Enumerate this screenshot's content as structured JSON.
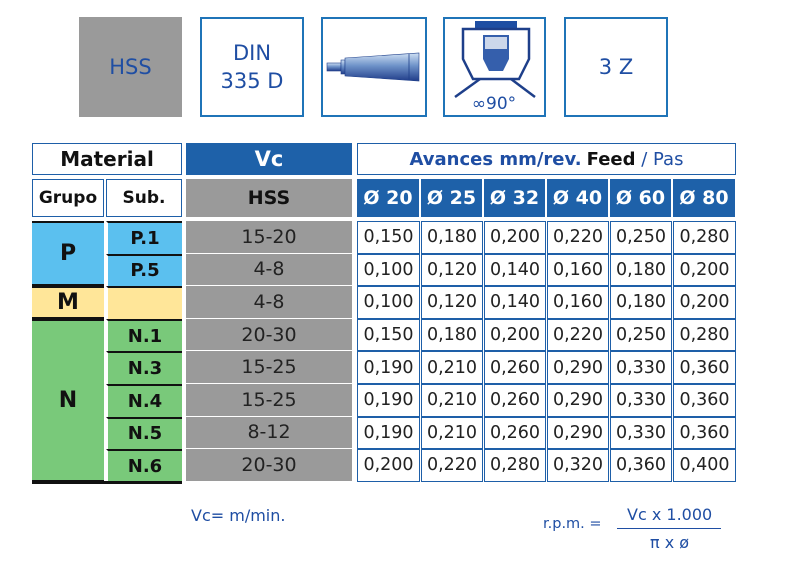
{
  "icons": {
    "material": "HSS",
    "standard": "DIN\n335 D",
    "angle": "∞90°",
    "teeth": "3 Z"
  },
  "table": {
    "material_header": "Material",
    "grupo_header": "Grupo",
    "sub_header": "Sub.",
    "vc_header": "Vc",
    "vc_sub_header": "HSS",
    "feed_header_bold": "Avances mm/rev.",
    "feed_header_feed": "Feed",
    "feed_header_sep": " / ",
    "feed_header_pas": "Pas",
    "diameters": [
      "Ø 20",
      "Ø 25",
      "Ø 32",
      "Ø 40",
      "Ø 60",
      "Ø 80"
    ],
    "groups": [
      {
        "label": "P",
        "color": "#5bc0ef"
      },
      {
        "label": "M",
        "color": "#ffe699"
      },
      {
        "label": "N",
        "color": "#79c97a"
      }
    ],
    "rows": [
      {
        "sub": "P.1",
        "vc": "15-20",
        "feeds": [
          "0,150",
          "0,180",
          "0,200",
          "0,220",
          "0,250",
          "0,280"
        ]
      },
      {
        "sub": "P.5",
        "vc": "4-8",
        "feeds": [
          "0,100",
          "0,120",
          "0,140",
          "0,160",
          "0,180",
          "0,200"
        ]
      },
      {
        "sub": "",
        "vc": "4-8",
        "feeds": [
          "0,100",
          "0,120",
          "0,140",
          "0,160",
          "0,180",
          "0,200"
        ]
      },
      {
        "sub": "N.1",
        "vc": "20-30",
        "feeds": [
          "0,150",
          "0,180",
          "0,200",
          "0,220",
          "0,250",
          "0,280"
        ]
      },
      {
        "sub": "N.3",
        "vc": "15-25",
        "feeds": [
          "0,190",
          "0,210",
          "0,260",
          "0,290",
          "0,330",
          "0,360"
        ]
      },
      {
        "sub": "N.4",
        "vc": "15-25",
        "feeds": [
          "0,190",
          "0,210",
          "0,260",
          "0,290",
          "0,330",
          "0,360"
        ]
      },
      {
        "sub": "N.5",
        "vc": "8-12",
        "feeds": [
          "0,190",
          "0,210",
          "0,260",
          "0,290",
          "0,330",
          "0,360"
        ]
      },
      {
        "sub": "N.6",
        "vc": "20-30",
        "feeds": [
          "0,200",
          "0,220",
          "0,280",
          "0,320",
          "0,360",
          "0,400"
        ]
      }
    ]
  },
  "footer": {
    "vc_unit": "Vc= m/min.",
    "rpm_label": "r.p.m. =",
    "rpm_numerator": "Vc x 1.000",
    "rpm_denominator": "π x ø"
  },
  "colors": {
    "header_blue": "#1e61a9",
    "vc_gray": "#9a9a9a",
    "text_blue": "#1f4ea3"
  }
}
